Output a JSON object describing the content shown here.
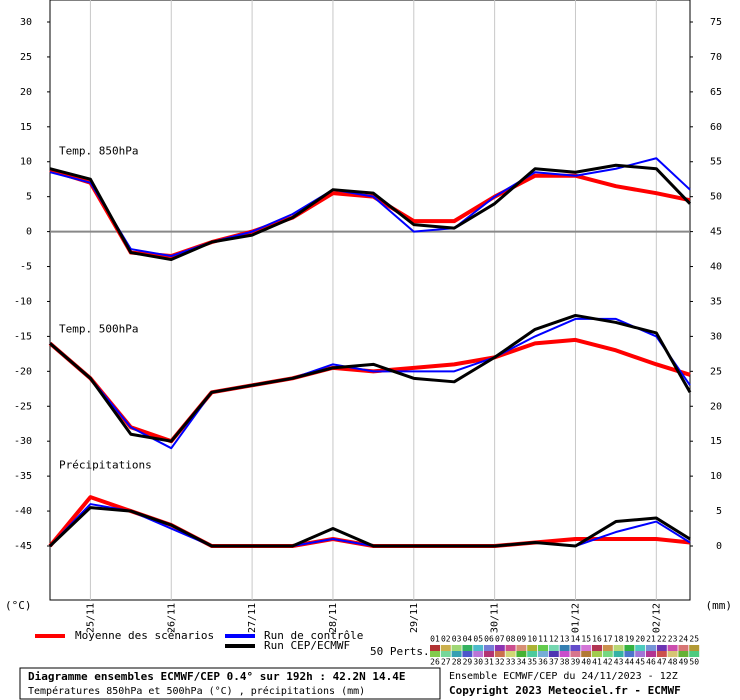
{
  "chart_data": {
    "type": "line",
    "x": [
      0,
      12,
      24,
      36,
      48,
      60,
      72,
      84,
      96,
      108,
      120,
      132,
      144,
      156,
      168,
      180,
      190
    ],
    "xlim": [
      0,
      190
    ],
    "xticks": [
      {
        "value": 12,
        "label": "25/11"
      },
      {
        "value": 36,
        "label": "26/11"
      },
      {
        "value": 60,
        "label": "27/11"
      },
      {
        "value": 84,
        "label": "28/11"
      },
      {
        "value": 108,
        "label": "29/11"
      },
      {
        "value": 132,
        "label": "30/11"
      },
      {
        "value": 156,
        "label": "01/12"
      },
      {
        "value": 180,
        "label": "02/12"
      }
    ],
    "ylim": [
      -52.73,
      33.15
    ],
    "yticks": [
      30,
      25,
      20,
      15,
      10,
      5,
      0,
      -5,
      -10,
      -15,
      -20,
      -25,
      -30,
      -35,
      -40,
      -45
    ],
    "y2lim": [
      -7.73,
      78.15
    ],
    "y2ticks": [
      75,
      70,
      65,
      60,
      55,
      50,
      45,
      40,
      35,
      30,
      25,
      20,
      15,
      10,
      5,
      0
    ],
    "y_unit": "(°C)",
    "y2_unit": "(mm)",
    "annotations": [
      "Temp. 850hPa",
      "Temp. 500hPa",
      "Précipitations"
    ],
    "series": [
      {
        "name": "Moyenne des scénarios",
        "color": "#ff0000",
        "width": 4,
        "t850": [
          8.8,
          7,
          -3,
          -3.5,
          -1.5,
          0,
          2,
          5.5,
          5,
          1.5,
          1.5,
          5,
          8,
          8,
          6.5,
          5.5,
          4.5
        ],
        "t500": [
          -16,
          -21,
          -28,
          -30,
          -23,
          -22,
          -21,
          -19.5,
          -20,
          -19.5,
          -19,
          -18,
          -16,
          -15.5,
          -17,
          -19,
          -20.5
        ],
        "precip": [
          0,
          7,
          5,
          3,
          0,
          0,
          0,
          1,
          0,
          0,
          0,
          0,
          0.5,
          1,
          1,
          1,
          0.5
        ]
      },
      {
        "name": "Run de contrôle",
        "color": "#0000ff",
        "width": 2,
        "t850": [
          8.5,
          7,
          -2.5,
          -3.5,
          -1.5,
          0,
          2.5,
          6,
          5,
          0,
          0.5,
          5,
          8.5,
          8,
          9,
          10.5,
          6
        ],
        "t500": [
          -16,
          -21,
          -28,
          -31,
          -23,
          -22,
          -21,
          -19,
          -20,
          -20,
          -20,
          -18,
          -15,
          -12.5,
          -12.5,
          -15,
          -22
        ],
        "precip": [
          0,
          6,
          5,
          2.5,
          0,
          0,
          0,
          1,
          0,
          0,
          0,
          0,
          0.5,
          0,
          2,
          3.5,
          0.5
        ]
      },
      {
        "name": "Run CEP/ECMWF",
        "color": "#000000",
        "width": 3,
        "t850": [
          9,
          7.5,
          -3,
          -4,
          -1.5,
          -0.5,
          2,
          6,
          5.5,
          1,
          0.5,
          4,
          9,
          8.5,
          9.5,
          9,
          4
        ],
        "t500": [
          -16,
          -21,
          -29,
          -30,
          -23,
          -22,
          -21,
          -19.5,
          -19,
          -21,
          -21.5,
          -18,
          -14,
          -12,
          -13,
          -14.5,
          -23
        ],
        "precip": [
          0,
          5.5,
          5,
          3,
          0,
          0,
          0,
          2.5,
          0,
          0,
          0,
          0,
          0.5,
          0,
          3.5,
          4,
          1
        ]
      }
    ],
    "perts_label": "50 Perts.",
    "pert_numbers": [
      "01",
      "02",
      "03",
      "04",
      "05",
      "06",
      "07",
      "08",
      "09",
      "10",
      "11",
      "12",
      "13",
      "14",
      "15",
      "16",
      "17",
      "18",
      "19",
      "20",
      "21",
      "22",
      "23",
      "24",
      "25",
      "26",
      "27",
      "28",
      "29",
      "30",
      "31",
      "32",
      "33",
      "34",
      "35",
      "36",
      "37",
      "38",
      "39",
      "40",
      "41",
      "42",
      "43",
      "44",
      "45",
      "46",
      "47",
      "48",
      "49",
      "50"
    ],
    "footer": {
      "title": "Diagramme ensembles ECMWF/CEP 0.4° sur 192h : 42.2N 14.4E",
      "subtitle": "Températures 850hPa et 500hPa (°C) , précipitations (mm)",
      "run": "Ensemble ECMWF/CEP du 24/11/2023 - 12Z",
      "copyright": "Copyright 2023 Meteociel.fr - ECMWF"
    }
  }
}
